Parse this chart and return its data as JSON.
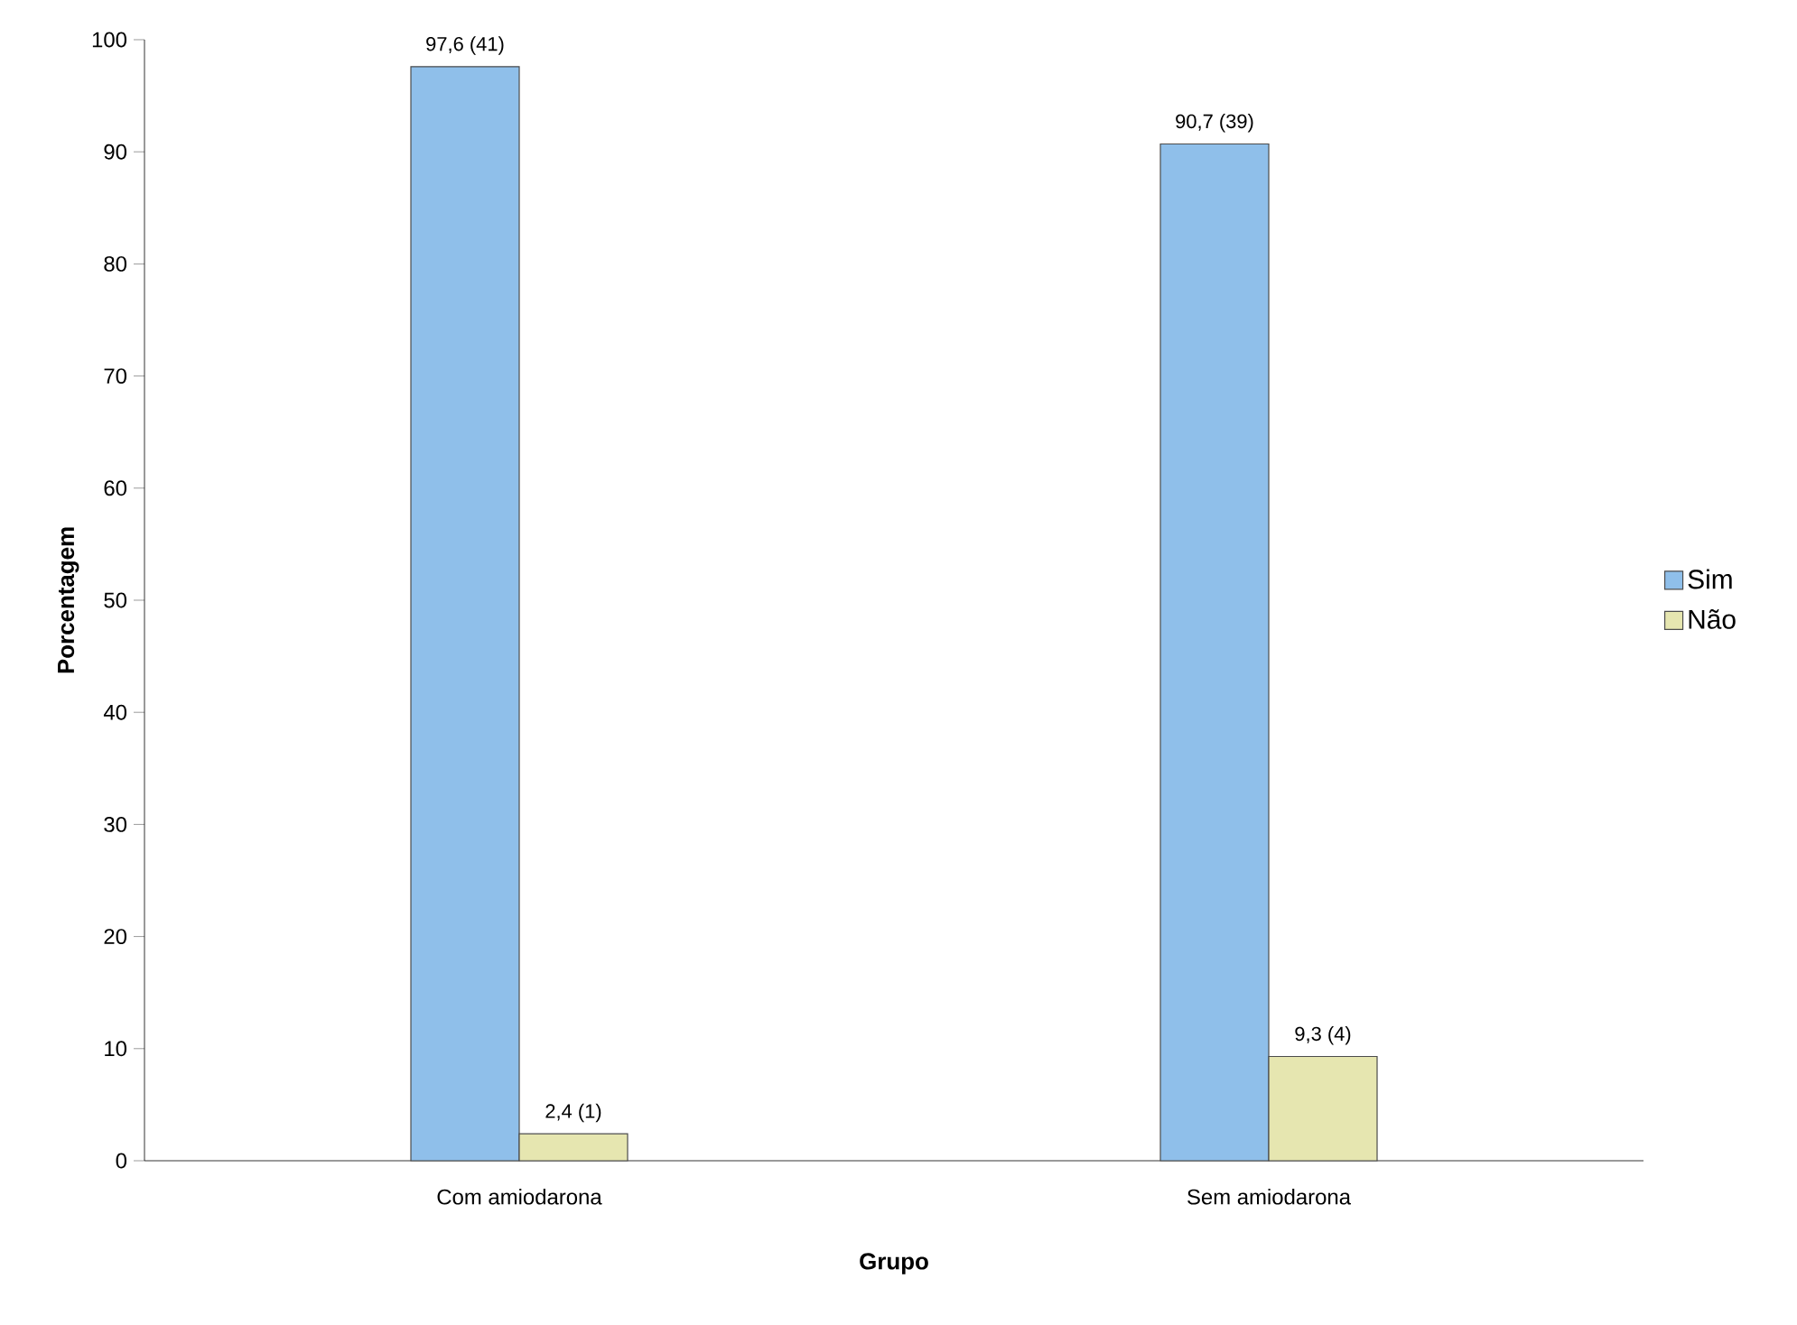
{
  "chart_data": {
    "type": "bar",
    "xlabel": "Grupo",
    "ylabel": "Porcentagem",
    "categories": [
      "Com amiodarona",
      "Sem amiodarona"
    ],
    "series": [
      {
        "name": "Sim",
        "color": "#8fbfea",
        "values": [
          97.6,
          90.7
        ],
        "value_labels": [
          "97,6 (41)",
          "90,7 (39)"
        ]
      },
      {
        "name": "Não",
        "color": "#e6e6b0",
        "values": [
          2.4,
          9.3
        ],
        "value_labels": [
          "2,4 (1)",
          "9,3 (4)"
        ]
      }
    ],
    "ylim": [
      0,
      100
    ],
    "yticks": [
      0,
      10,
      20,
      30,
      40,
      50,
      60,
      70,
      80,
      90,
      100
    ],
    "legend": "right",
    "grid": false
  }
}
